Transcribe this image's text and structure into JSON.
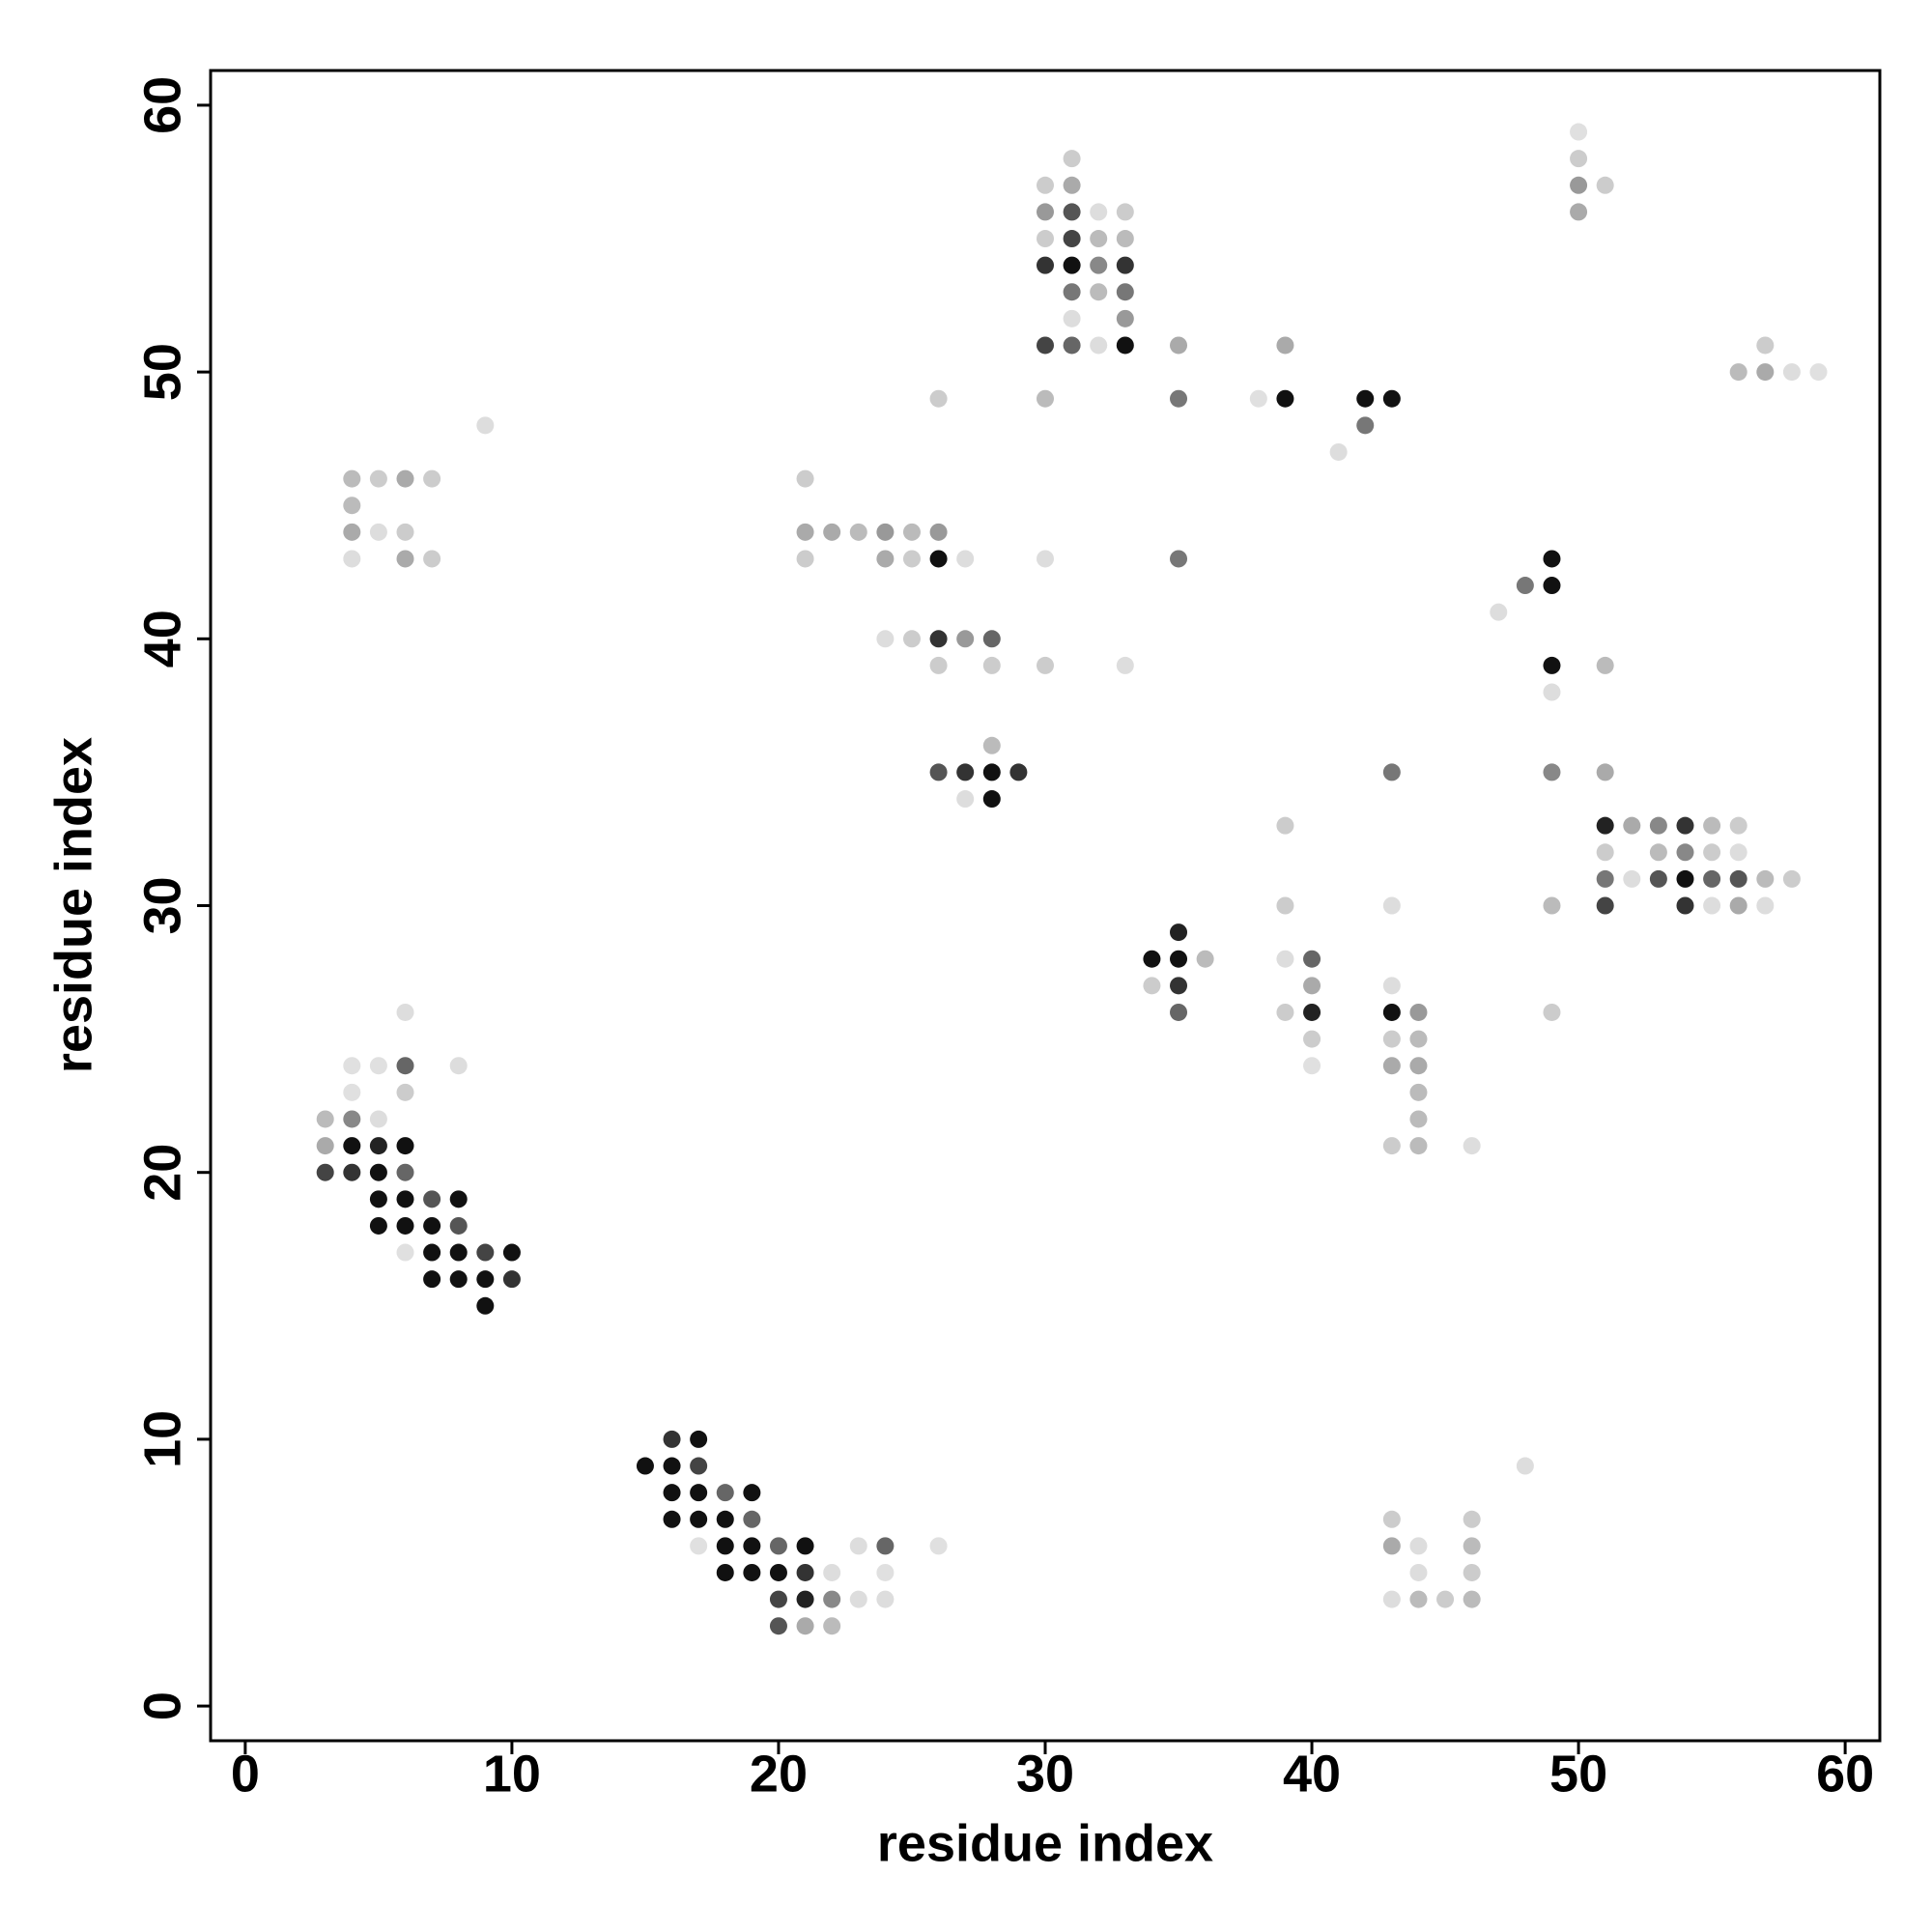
{
  "chart_data": {
    "type": "scatter",
    "xlabel": "residue index",
    "ylabel": "residue index",
    "xlim": [
      -1.3,
      61.3
    ],
    "ylim": [
      -1.3,
      61.3
    ],
    "xticks": [
      0,
      10,
      20,
      30,
      40,
      50,
      60
    ],
    "yticks": [
      0,
      10,
      20,
      30,
      40,
      50,
      60
    ],
    "x": [
      16,
      17,
      15,
      16,
      17,
      16,
      17,
      18,
      19,
      16,
      17,
      18,
      19,
      17,
      18,
      19,
      20,
      21,
      23,
      24,
      26,
      18,
      19,
      20,
      21,
      22,
      24,
      20,
      21,
      22,
      23,
      24,
      20,
      21,
      22,
      48,
      43,
      46,
      43,
      44,
      46,
      44,
      46,
      43,
      44,
      45,
      46,
      6,
      4,
      5,
      6,
      8,
      4,
      6,
      3,
      4,
      5,
      3,
      4,
      5,
      6,
      3,
      4,
      5,
      6,
      5,
      6,
      7,
      8,
      5,
      6,
      7,
      8,
      6,
      7,
      8,
      9,
      10,
      7,
      8,
      9,
      10,
      9,
      9,
      4,
      5,
      6,
      7,
      4,
      4,
      5,
      6,
      4,
      6,
      7,
      26,
      30,
      21,
      21,
      22,
      23,
      24,
      25,
      26,
      21,
      24,
      25,
      26,
      27,
      30,
      35,
      24,
      25,
      26,
      27,
      28,
      26,
      28,
      30,
      33,
      28,
      26,
      27,
      28,
      29,
      27,
      28,
      31,
      30,
      31,
      30,
      31,
      32,
      33,
      30,
      31,
      32,
      33,
      30,
      31,
      32,
      33,
      31,
      32,
      33,
      31,
      33,
      30,
      31,
      32,
      33,
      35,
      35,
      39,
      38,
      39,
      42,
      43,
      42,
      41,
      50,
      50,
      50,
      51,
      50,
      57,
      56,
      57,
      58,
      59,
      49,
      48,
      49,
      47,
      49,
      51,
      49,
      43,
      49,
      51,
      39,
      51,
      52,
      53,
      54,
      55,
      56,
      51,
      53,
      54,
      55,
      56,
      51,
      52,
      53,
      54,
      55,
      56,
      57,
      58,
      39,
      43,
      49,
      51,
      54,
      55,
      56,
      57,
      35,
      34,
      35,
      36,
      39,
      40,
      34,
      35,
      40,
      43,
      35,
      39,
      40,
      43,
      44,
      49,
      40,
      43,
      44,
      40,
      43,
      44,
      44,
      44,
      43,
      44,
      46
    ],
    "values": [
      10,
      10,
      9,
      9,
      9,
      8,
      8,
      8,
      8,
      7,
      7,
      7,
      7,
      6,
      6,
      6,
      6,
      6,
      6,
      6,
      6,
      5,
      5,
      5,
      5,
      5,
      5,
      4,
      4,
      4,
      4,
      4,
      3,
      3,
      3,
      9,
      7,
      7,
      6,
      6,
      6,
      5,
      5,
      4,
      4,
      4,
      4,
      26,
      24,
      24,
      24,
      24,
      23,
      23,
      22,
      22,
      22,
      21,
      21,
      21,
      21,
      20,
      20,
      20,
      20,
      19,
      19,
      19,
      19,
      18,
      18,
      18,
      18,
      17,
      17,
      17,
      17,
      17,
      16,
      16,
      16,
      16,
      15,
      48,
      46,
      46,
      46,
      46,
      45,
      44,
      44,
      44,
      43,
      43,
      43,
      49,
      49,
      46,
      44,
      44,
      44,
      44,
      44,
      44,
      43,
      43,
      43,
      43,
      43,
      43,
      43,
      40,
      40,
      40,
      40,
      40,
      39,
      39,
      39,
      39,
      36,
      35,
      35,
      35,
      35,
      34,
      34,
      58,
      57,
      57,
      56,
      56,
      56,
      56,
      55,
      55,
      55,
      55,
      54,
      54,
      54,
      54,
      53,
      53,
      53,
      52,
      52,
      51,
      51,
      51,
      51,
      51,
      49,
      51,
      49,
      49,
      49,
      49,
      48,
      47,
      59,
      58,
      57,
      57,
      56,
      51,
      50,
      50,
      50,
      50,
      43,
      42,
      42,
      41,
      39,
      39,
      38,
      35,
      35,
      35,
      33,
      33,
      33,
      33,
      33,
      33,
      33,
      32,
      32,
      32,
      32,
      32,
      31,
      31,
      31,
      31,
      31,
      31,
      31,
      31,
      30,
      30,
      30,
      30,
      30,
      30,
      30,
      30,
      29,
      28,
      28,
      28,
      28,
      28,
      27,
      27,
      27,
      27,
      26,
      26,
      26,
      26,
      26,
      26,
      25,
      25,
      25,
      24,
      24,
      24,
      23,
      22,
      21,
      21,
      21
    ],
    "colors": [
      "#333",
      "#111",
      "#111",
      "#111",
      "#444",
      "#111",
      "#111",
      "#666",
      "#111",
      "#111",
      "#111",
      "#111",
      "#666",
      "#e0e0e0",
      "#111",
      "#111",
      "#666",
      "#111",
      "#ddd",
      "#666",
      "#e0e0e0",
      "#111",
      "#111",
      "#111",
      "#333",
      "#ddd",
      "#e0e0e0",
      "#444",
      "#222",
      "#888",
      "#ddd",
      "#ddd",
      "#555",
      "#aaa",
      "#bbb",
      "#ddd",
      "#ccc",
      "#ccc",
      "#aaa",
      "#ddd",
      "#bbb",
      "#ddd",
      "#ccc",
      "#ddd",
      "#bbb",
      "#ccc",
      "#bbb",
      "#ddd",
      "#e0e0e0",
      "#e0e0e0",
      "#666",
      "#ddd",
      "#e0e0e0",
      "#ccc",
      "#bbb",
      "#888",
      "#ddd",
      "#aaa",
      "#111",
      "#222",
      "#111",
      "#444",
      "#333",
      "#111",
      "#666",
      "#111",
      "#111",
      "#555",
      "#111",
      "#111",
      "#111",
      "#111",
      "#555",
      "#e0e0e0",
      "#111",
      "#111",
      "#444",
      "#111",
      "#111",
      "#111",
      "#111",
      "#333",
      "#111",
      "#ddd",
      "#bbb",
      "#ccc",
      "#aaa",
      "#ccc",
      "#bbb",
      "#aaa",
      "#ddd",
      "#ccc",
      "#ddd",
      "#aaa",
      "#ccc",
      "#ccc",
      "#bbb",
      "#ccc",
      "#aaa",
      "#aaa",
      "#bbb",
      "#999",
      "#bbb",
      "#999",
      "#ccc",
      "#aaa",
      "#ccc",
      "#111",
      "#ddd",
      "#ddd",
      "#777",
      "#ddd",
      "#ccc",
      "#333",
      "#999",
      "#666",
      "#ccc",
      "#ccc",
      "#ccc",
      "#ddd",
      "#bbb",
      "#555",
      "#333",
      "#111",
      "#333",
      "#ddd",
      "#111",
      "#ccc",
      "#ccc",
      "#aaa",
      "#999",
      "#555",
      "#ddd",
      "#ccc",
      "#ccc",
      "#444",
      "#bbb",
      "#bbb",
      "#333",
      "#111",
      "#888",
      "#333",
      "#777",
      "#bbb",
      "#777",
      "#ddd",
      "#999",
      "#444",
      "#666",
      "#ddd",
      "#111",
      "#aaa",
      "#777",
      "#aaa",
      "#e0e0e0",
      "#111",
      "#111",
      "#111",
      "#777",
      "#ddd",
      "#e0e0e0",
      "#ccc",
      "#999",
      "#ccc",
      "#aaa",
      "#ccc",
      "#bbb",
      "#aaa",
      "#ddd",
      "#e0e0e0",
      "#111",
      "#777",
      "#111",
      "#ddd",
      "#111",
      "#bbb",
      "#ddd",
      "#777",
      "#888",
      "#aaa",
      "#ccc",
      "#222",
      "#aaa",
      "#888",
      "#333",
      "#bbb",
      "#ccc",
      "#ccc",
      "#bbb",
      "#888",
      "#ccc",
      "#ddd",
      "#777",
      "#ddd",
      "#555",
      "#111",
      "#666",
      "#555",
      "#bbb",
      "#ccc",
      "#ccc",
      "#ddd",
      "#bbb",
      "#444",
      "#333",
      "#ddd",
      "#aaa",
      "#ddd",
      "#222",
      "#111",
      "#111",
      "#bbb",
      "#ddd",
      "#666",
      "#ccc",
      "#333",
      "#aaa",
      "#ddd",
      "#666",
      "#ccc",
      "#222",
      "#111",
      "#999",
      "#ccc",
      "#ccc",
      "#ccc",
      "#bbb",
      "#e0e0e0",
      "#aaa",
      "#aaa",
      "#bbb",
      "#bbb",
      "#ccc",
      "#bbb",
      "#ddd"
    ]
  }
}
